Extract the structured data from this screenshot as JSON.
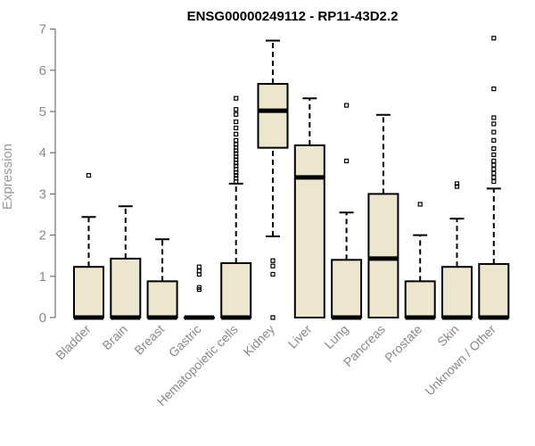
{
  "chart_data": {
    "type": "box",
    "title": "ENSG00000249112 - RP11-43D2.2",
    "ylabel": "Expression",
    "ylim": [
      0,
      7
    ],
    "yticks": [
      0,
      1,
      2,
      3,
      4,
      5,
      6,
      7
    ],
    "box_color": "#ede6cf",
    "categories": [
      "Bladder",
      "Brain",
      "Breast",
      "Gastric",
      "Hematopoietic cells",
      "Kidney",
      "Liver",
      "Lung",
      "Pancreas",
      "Prostate",
      "Skin",
      "Unknown / Other"
    ],
    "boxes": [
      {
        "category": "Bladder",
        "q1": 0,
        "median": 0,
        "q3": 1.23,
        "whisker_low": 0,
        "whisker_high": 2.44,
        "outliers": [
          3.45
        ]
      },
      {
        "category": "Brain",
        "q1": 0,
        "median": 0,
        "q3": 1.43,
        "whisker_low": 0,
        "whisker_high": 2.7,
        "outliers": []
      },
      {
        "category": "Breast",
        "q1": 0,
        "median": 0,
        "q3": 0.88,
        "whisker_low": 0,
        "whisker_high": 1.9,
        "outliers": []
      },
      {
        "category": "Gastric",
        "q1": 0,
        "median": 0,
        "q3": 0,
        "whisker_low": 0,
        "whisker_high": 0,
        "outliers": [
          0.68,
          0.73,
          1.05,
          1.13,
          1.23
        ]
      },
      {
        "category": "Hematopoietic cells",
        "q1": 0,
        "median": 0,
        "q3": 1.32,
        "whisker_low": 0,
        "whisker_high": 3.25,
        "outliers": [
          3.3,
          3.38,
          3.45,
          3.52,
          3.6,
          3.68,
          3.75,
          3.83,
          3.9,
          3.98,
          4.05,
          4.13,
          4.2,
          4.3,
          4.45,
          4.6,
          4.75,
          4.93,
          5.05,
          5.32
        ]
      },
      {
        "category": "Kidney",
        "q1": 4.12,
        "median": 5.02,
        "q3": 5.67,
        "whisker_low": 1.97,
        "whisker_high": 6.72,
        "outliers": [
          0,
          1.05,
          1.25,
          1.38
        ]
      },
      {
        "category": "Liver",
        "q1": 0,
        "median": 3.4,
        "q3": 4.18,
        "whisker_low": 0,
        "whisker_high": 5.32,
        "outliers": []
      },
      {
        "category": "Lung",
        "q1": 0,
        "median": 0,
        "q3": 1.4,
        "whisker_low": 0,
        "whisker_high": 2.55,
        "outliers": [
          3.8,
          5.15
        ]
      },
      {
        "category": "Pancreas",
        "q1": 0,
        "median": 1.43,
        "q3": 3.0,
        "whisker_low": 0,
        "whisker_high": 4.92,
        "outliers": []
      },
      {
        "category": "Prostate",
        "q1": 0,
        "median": 0,
        "q3": 0.88,
        "whisker_low": 0,
        "whisker_high": 2.0,
        "outliers": [
          2.75
        ]
      },
      {
        "category": "Skin",
        "q1": 0,
        "median": 0,
        "q3": 1.23,
        "whisker_low": 0,
        "whisker_high": 2.4,
        "outliers": [
          3.18,
          3.25
        ]
      },
      {
        "category": "Unknown / Other",
        "q1": 0,
        "median": 0,
        "q3": 1.3,
        "whisker_low": 0,
        "whisker_high": 3.13,
        "outliers": [
          3.3,
          3.4,
          3.5,
          3.6,
          3.7,
          3.8,
          3.95,
          4.1,
          4.3,
          4.5,
          4.7,
          4.85,
          5.55,
          6.78
        ]
      }
    ]
  }
}
